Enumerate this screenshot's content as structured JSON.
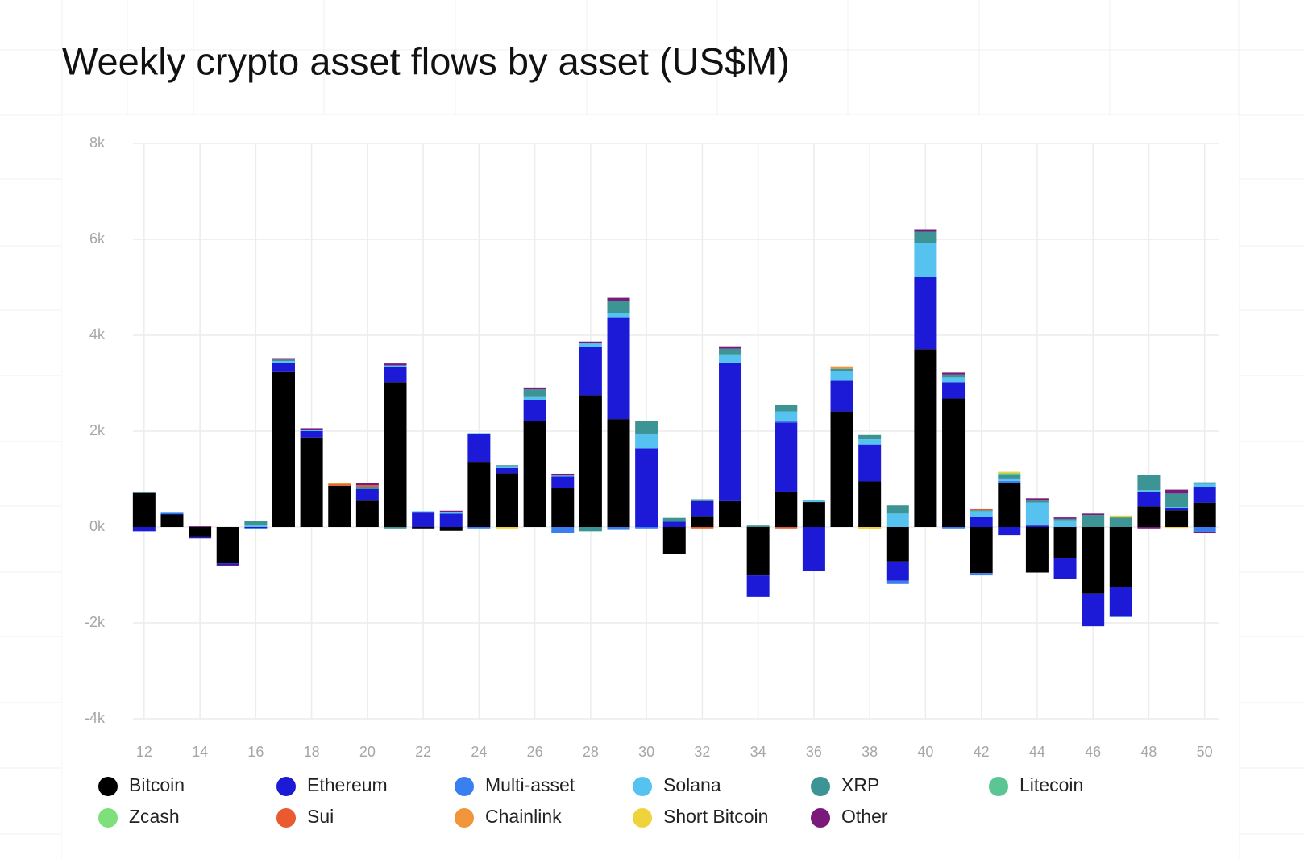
{
  "chart_data": {
    "type": "bar",
    "stacked": true,
    "title": "Weekly crypto asset flows by asset (US$M)",
    "x": [
      12,
      13,
      14,
      15,
      16,
      17,
      18,
      19,
      20,
      21,
      22,
      23,
      24,
      25,
      26,
      27,
      28,
      29,
      30,
      31,
      32,
      33,
      34,
      35,
      36,
      37,
      38,
      39,
      40,
      41,
      42,
      43,
      44,
      45,
      46,
      47,
      48,
      49,
      50
    ],
    "xlim": [
      11.6,
      50.5
    ],
    "xticks": [
      12,
      14,
      16,
      18,
      20,
      22,
      24,
      26,
      28,
      30,
      32,
      34,
      36,
      38,
      40,
      42,
      44,
      46,
      48,
      50
    ],
    "ylim": [
      -4000,
      8000
    ],
    "yticks": [
      {
        "value": -4000,
        "label": "-4k"
      },
      {
        "value": -2000,
        "label": "-2k"
      },
      {
        "value": 0,
        "label": "0k"
      },
      {
        "value": 2000,
        "label": "2k"
      },
      {
        "value": 4000,
        "label": "4k"
      },
      {
        "value": 6000,
        "label": "6k"
      },
      {
        "value": 8000,
        "label": "8k"
      }
    ],
    "grid": true,
    "legend": "bottom",
    "series": [
      {
        "name": "Bitcoin",
        "color": "#000000",
        "values": [
          710,
          260,
          -200,
          -760,
          0,
          3230,
          1870,
          860,
          550,
          3020,
          -30,
          -80,
          1360,
          1120,
          2210,
          820,
          2750,
          2250,
          0,
          -570,
          230,
          540,
          -1010,
          740,
          520,
          2410,
          950,
          -720,
          3710,
          2680,
          -960,
          920,
          -950,
          -650,
          -1390,
          -1250,
          430,
          350,
          510
        ]
      },
      {
        "name": "Ethereum",
        "color": "#1c1ad6",
        "values": [
          -90,
          20,
          -40,
          -30,
          -20,
          200,
          130,
          0,
          240,
          310,
          300,
          280,
          580,
          110,
          440,
          230,
          1000,
          2110,
          1640,
          110,
          310,
          2890,
          -450,
          1440,
          -920,
          640,
          770,
          -400,
          1500,
          340,
          210,
          -170,
          30,
          -430,
          -680,
          -600,
          310,
          50,
          330
        ]
      },
      {
        "name": "Multi-asset",
        "color": "#3a7ff0",
        "values": [
          0,
          0,
          0,
          0,
          -20,
          0,
          0,
          0,
          0,
          0,
          0,
          0,
          -30,
          0,
          0,
          -120,
          0,
          -60,
          -30,
          0,
          0,
          0,
          0,
          40,
          0,
          0,
          0,
          -70,
          0,
          -30,
          -50,
          40,
          20,
          0,
          0,
          -30,
          0,
          0,
          -100
        ]
      },
      {
        "name": "Solana",
        "color": "#56c2f0",
        "values": [
          0,
          30,
          0,
          0,
          30,
          30,
          30,
          0,
          0,
          40,
          30,
          30,
          20,
          40,
          60,
          20,
          80,
          110,
          310,
          0,
          0,
          170,
          0,
          190,
          30,
          200,
          110,
          280,
          720,
          100,
          120,
          50,
          460,
          140,
          0,
          0,
          30,
          20,
          60
        ]
      },
      {
        "name": "XRP",
        "color": "#3d9494",
        "values": [
          20,
          0,
          0,
          0,
          90,
          30,
          0,
          0,
          50,
          -30,
          0,
          0,
          0,
          20,
          160,
          0,
          -90,
          250,
          260,
          80,
          40,
          120,
          30,
          140,
          20,
          50,
          90,
          170,
          230,
          60,
          20,
          80,
          40,
          30,
          250,
          200,
          320,
          280,
          30
        ]
      },
      {
        "name": "Litecoin",
        "color": "#5cc594",
        "values": [
          10,
          0,
          0,
          0,
          0,
          0,
          0,
          0,
          0,
          0,
          0,
          0,
          0,
          0,
          0,
          0,
          0,
          0,
          0,
          0,
          0,
          0,
          0,
          0,
          0,
          0,
          0,
          0,
          0,
          0,
          0,
          30,
          0,
          0,
          0,
          0,
          0,
          0,
          0
        ]
      },
      {
        "name": "Zcash",
        "color": "#7ee07a",
        "values": [
          0,
          0,
          0,
          0,
          0,
          0,
          0,
          0,
          0,
          0,
          0,
          0,
          0,
          0,
          0,
          0,
          0,
          0,
          0,
          0,
          0,
          0,
          0,
          0,
          0,
          0,
          0,
          0,
          0,
          0,
          0,
          0,
          0,
          0,
          0,
          0,
          0,
          0,
          0
        ]
      },
      {
        "name": "Sui",
        "color": "#ea5a30",
        "values": [
          0,
          0,
          0,
          0,
          0,
          0,
          0,
          30,
          30,
          0,
          0,
          0,
          0,
          0,
          0,
          0,
          0,
          0,
          0,
          0,
          -30,
          0,
          0,
          -30,
          0,
          0,
          0,
          0,
          0,
          0,
          20,
          0,
          0,
          0,
          0,
          0,
          0,
          0,
          0
        ]
      },
      {
        "name": "Chainlink",
        "color": "#f0953a",
        "values": [
          0,
          0,
          0,
          0,
          0,
          0,
          0,
          20,
          0,
          0,
          0,
          0,
          0,
          0,
          0,
          0,
          0,
          0,
          0,
          0,
          0,
          0,
          0,
          0,
          0,
          50,
          0,
          0,
          0,
          0,
          0,
          0,
          0,
          0,
          0,
          0,
          0,
          0,
          0
        ]
      },
      {
        "name": "Short Bitcoin",
        "color": "#f0d23a",
        "values": [
          0,
          0,
          0,
          0,
          0,
          0,
          0,
          0,
          0,
          0,
          0,
          0,
          0,
          -30,
          0,
          0,
          0,
          0,
          0,
          0,
          0,
          0,
          0,
          0,
          0,
          0,
          -40,
          0,
          0,
          0,
          0,
          30,
          0,
          0,
          0,
          40,
          0,
          -20,
          0
        ]
      },
      {
        "name": "Other",
        "color": "#7a1a7a",
        "values": [
          0,
          0,
          15,
          -30,
          0,
          30,
          30,
          0,
          40,
          40,
          0,
          30,
          0,
          0,
          40,
          40,
          40,
          60,
          0,
          0,
          0,
          50,
          0,
          0,
          0,
          0,
          0,
          0,
          50,
          40,
          0,
          0,
          50,
          30,
          30,
          0,
          -30,
          80,
          -30
        ]
      }
    ]
  }
}
